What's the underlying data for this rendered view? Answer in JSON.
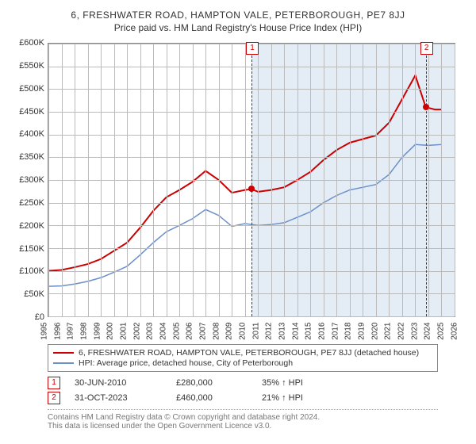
{
  "header": {
    "address": "6, FRESHWATER ROAD, HAMPTON VALE, PETERBOROUGH, PE7 8JJ",
    "subtitle": "Price paid vs. HM Land Registry's House Price Index (HPI)"
  },
  "chart": {
    "type": "line",
    "background_color": "#ffffff",
    "grid_color": "#bbbbbb",
    "axis_color": "#888888",
    "y": {
      "min": 0,
      "max": 600000,
      "step": 50000,
      "prefix": "£",
      "suffix": "K",
      "fontsize": 11
    },
    "x": {
      "min": 1995,
      "max": 2026,
      "step": 1,
      "fontsize": 10
    },
    "shade": {
      "from": 2010.5,
      "to": 2026,
      "color": "rgba(210,225,240,.6)"
    },
    "series": [
      {
        "name": "6, FRESHWATER ROAD, HAMPTON VALE, PETERBOROUGH, PE7 8JJ (detached house)",
        "color": "#cc0000",
        "width": 2,
        "points": [
          [
            1995,
            100000
          ],
          [
            1996,
            102000
          ],
          [
            1997,
            108000
          ],
          [
            1998,
            115000
          ],
          [
            1999,
            126000
          ],
          [
            2000,
            144000
          ],
          [
            2001,
            162000
          ],
          [
            2002,
            195000
          ],
          [
            2003,
            232000
          ],
          [
            2004,
            262000
          ],
          [
            2005,
            278000
          ],
          [
            2006,
            296000
          ],
          [
            2007,
            320000
          ],
          [
            2008,
            300000
          ],
          [
            2009,
            272000
          ],
          [
            2010,
            278000
          ],
          [
            2010.5,
            280000
          ],
          [
            2011,
            274000
          ],
          [
            2012,
            278000
          ],
          [
            2013,
            284000
          ],
          [
            2014,
            300000
          ],
          [
            2015,
            318000
          ],
          [
            2016,
            344000
          ],
          [
            2017,
            366000
          ],
          [
            2018,
            382000
          ],
          [
            2019,
            390000
          ],
          [
            2020,
            398000
          ],
          [
            2021,
            426000
          ],
          [
            2022,
            478000
          ],
          [
            2023,
            530000
          ],
          [
            2023.8,
            460000
          ],
          [
            2024.5,
            455000
          ],
          [
            2025,
            455000
          ]
        ]
      },
      {
        "name": "HPI: Average price, detached house, City of Peterborough",
        "color": "#6a8fc9",
        "width": 1.5,
        "points": [
          [
            1995,
            66000
          ],
          [
            1996,
            67000
          ],
          [
            1997,
            71000
          ],
          [
            1998,
            77000
          ],
          [
            1999,
            85000
          ],
          [
            2000,
            97000
          ],
          [
            2001,
            110000
          ],
          [
            2002,
            135000
          ],
          [
            2003,
            162000
          ],
          [
            2004,
            186000
          ],
          [
            2005,
            200000
          ],
          [
            2006,
            215000
          ],
          [
            2007,
            235000
          ],
          [
            2008,
            222000
          ],
          [
            2009,
            198000
          ],
          [
            2010,
            204000
          ],
          [
            2011,
            200000
          ],
          [
            2012,
            202000
          ],
          [
            2013,
            206000
          ],
          [
            2014,
            218000
          ],
          [
            2015,
            230000
          ],
          [
            2016,
            250000
          ],
          [
            2017,
            266000
          ],
          [
            2018,
            278000
          ],
          [
            2019,
            284000
          ],
          [
            2020,
            290000
          ],
          [
            2021,
            312000
          ],
          [
            2022,
            350000
          ],
          [
            2023,
            378000
          ],
          [
            2024,
            376000
          ],
          [
            2025,
            378000
          ]
        ]
      }
    ],
    "markers": [
      {
        "n": "1",
        "x": 2010.5,
        "y": 280000,
        "label_y_top": true
      },
      {
        "n": "2",
        "x": 2023.8,
        "y": 460000,
        "label_y_top": true
      }
    ]
  },
  "legend": {
    "items": [
      {
        "label": "6, FRESHWATER ROAD, HAMPTON VALE, PETERBOROUGH, PE7 8JJ (detached house)",
        "color": "#cc0000"
      },
      {
        "label": "HPI: Average price, detached house, City of Peterborough",
        "color": "#6a8fc9"
      }
    ]
  },
  "transactions": [
    {
      "n": "1",
      "date": "30-JUN-2010",
      "price": "£280,000",
      "delta": "35% ↑ HPI"
    },
    {
      "n": "2",
      "date": "31-OCT-2023",
      "price": "£460,000",
      "delta": "21% ↑ HPI"
    }
  ],
  "footer": {
    "line1": "Contains HM Land Registry data © Crown copyright and database right 2024.",
    "line2": "This data is licensed under the Open Government Licence v3.0."
  }
}
